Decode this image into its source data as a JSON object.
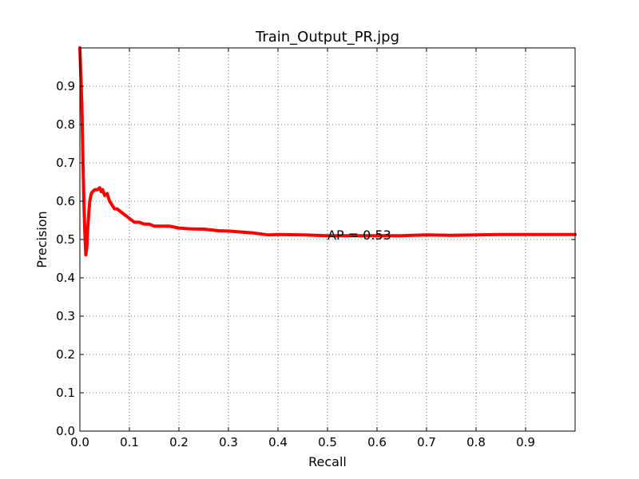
{
  "chart_data": {
    "type": "line",
    "title": "Train_Output_PR.jpg",
    "xlabel": "Recall",
    "ylabel": "Precision",
    "xlim": [
      0.0,
      1.0
    ],
    "ylim": [
      0.0,
      1.0
    ],
    "x_ticks": [
      "0.0",
      "0.1",
      "0.2",
      "0.3",
      "0.4",
      "0.5",
      "0.6",
      "0.7",
      "0.8",
      "0.9"
    ],
    "y_ticks": [
      "0.0",
      "0.1",
      "0.2",
      "0.3",
      "0.4",
      "0.5",
      "0.6",
      "0.7",
      "0.8",
      "0.9"
    ],
    "grid": true,
    "annotation": {
      "text": "AP = 0.53",
      "x": 0.5,
      "y": 0.5
    },
    "series": [
      {
        "color": "#ff0000",
        "x": [
          0.0,
          0.002,
          0.004,
          0.006,
          0.008,
          0.01,
          0.012,
          0.014,
          0.016,
          0.018,
          0.02,
          0.023,
          0.026,
          0.03,
          0.035,
          0.04,
          0.043,
          0.046,
          0.05,
          0.055,
          0.06,
          0.065,
          0.07,
          0.075,
          0.08,
          0.09,
          0.1,
          0.11,
          0.12,
          0.13,
          0.14,
          0.15,
          0.16,
          0.18,
          0.2,
          0.22,
          0.25,
          0.28,
          0.3,
          0.32,
          0.35,
          0.38,
          0.4,
          0.45,
          0.5,
          0.55,
          0.6,
          0.65,
          0.7,
          0.75,
          0.8,
          0.85,
          0.9,
          0.95,
          1.0
        ],
        "y": [
          1.0,
          0.93,
          0.85,
          0.72,
          0.6,
          0.52,
          0.46,
          0.48,
          0.53,
          0.57,
          0.6,
          0.62,
          0.625,
          0.63,
          0.63,
          0.635,
          0.625,
          0.63,
          0.615,
          0.62,
          0.6,
          0.59,
          0.58,
          0.58,
          0.575,
          0.565,
          0.555,
          0.545,
          0.545,
          0.54,
          0.54,
          0.535,
          0.535,
          0.535,
          0.53,
          0.528,
          0.527,
          0.523,
          0.522,
          0.52,
          0.517,
          0.512,
          0.513,
          0.512,
          0.51,
          0.51,
          0.51,
          0.51,
          0.512,
          0.511,
          0.512,
          0.513,
          0.513,
          0.513,
          0.513
        ]
      }
    ]
  }
}
